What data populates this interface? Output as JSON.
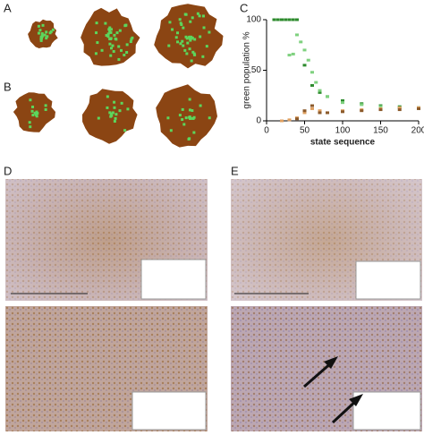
{
  "panels": {
    "a": "A",
    "b": "B",
    "c": "C",
    "d": "D",
    "e": "E"
  },
  "chart_data": {
    "type": "scatter",
    "x_label": "state sequence",
    "y_label": "green population %",
    "xlim": [
      0,
      200
    ],
    "ylim": [
      0,
      100
    ],
    "xticks": [
      0,
      50,
      100,
      150,
      200
    ],
    "yticks": [
      0,
      50,
      100
    ],
    "series": [
      {
        "color": "#2e8b2e",
        "x": [
          10,
          15,
          20,
          25,
          30,
          35,
          40,
          50,
          60,
          70,
          80,
          100,
          125,
          150,
          175,
          200
        ],
        "values": [
          100,
          100,
          100,
          100,
          100,
          100,
          100,
          55,
          35,
          28,
          24,
          20,
          17,
          15,
          14,
          13
        ]
      },
      {
        "color": "#7fd17f",
        "x": [
          30,
          35,
          40,
          45,
          50,
          55,
          60,
          65,
          70,
          80,
          100,
          125,
          150,
          175,
          200
        ],
        "values": [
          65,
          66,
          85,
          78,
          70,
          60,
          48,
          38,
          30,
          24,
          18,
          16,
          14,
          13,
          12
        ]
      },
      {
        "color": "#e0a060",
        "x": [
          20,
          30,
          40,
          50,
          60,
          70,
          80,
          100,
          125,
          150,
          175,
          200
        ],
        "values": [
          0,
          1,
          3,
          8,
          12,
          10,
          8,
          10,
          11,
          12,
          13,
          13
        ]
      },
      {
        "color": "#8b5a2b",
        "x": [
          40,
          50,
          60,
          70,
          80,
          100,
          125,
          150,
          175,
          200
        ],
        "values": [
          2,
          10,
          15,
          8,
          8,
          9,
          10,
          11,
          11,
          12
        ]
      }
    ]
  }
}
